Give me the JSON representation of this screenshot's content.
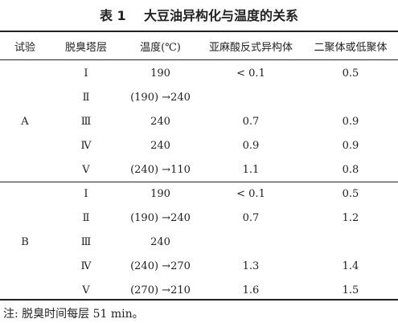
{
  "caption": {
    "label": "表 1",
    "title": "大豆油异构化与温度的关系"
  },
  "table": {
    "headers": [
      "试验",
      "脱臭塔层",
      "温度(℃)",
      "亚麻酸反式异构体",
      "二聚体或低聚体"
    ],
    "groups": [
      {
        "trial": "A",
        "rows": [
          {
            "layer": "Ⅰ",
            "temp": "190",
            "trans": "< 0.1",
            "dimer": "0.5"
          },
          {
            "layer": "Ⅱ",
            "temp": "(190) →240",
            "trans": "",
            "dimer": ""
          },
          {
            "layer": "Ⅲ",
            "temp": "240",
            "trans": "0.7",
            "dimer": "0.9"
          },
          {
            "layer": "Ⅳ",
            "temp": "240",
            "trans": "0.9",
            "dimer": "0.9"
          },
          {
            "layer": "Ⅴ",
            "temp": "(240) →110",
            "trans": "1.1",
            "dimer": "0.8"
          }
        ]
      },
      {
        "trial": "B",
        "rows": [
          {
            "layer": "Ⅰ",
            "temp": "190",
            "trans": "< 0.1",
            "dimer": "0.5"
          },
          {
            "layer": "Ⅱ",
            "temp": "(190) →240",
            "trans": "0.7",
            "dimer": "1.2"
          },
          {
            "layer": "Ⅲ",
            "temp": "240",
            "trans": "",
            "dimer": ""
          },
          {
            "layer": "Ⅳ",
            "temp": "(240) →270",
            "trans": "1.3",
            "dimer": "1.4"
          },
          {
            "layer": "Ⅴ",
            "temp": "(270) →210",
            "trans": "1.6",
            "dimer": "1.5"
          }
        ]
      }
    ]
  },
  "note": "注: 脱臭时间每层 51 min。"
}
